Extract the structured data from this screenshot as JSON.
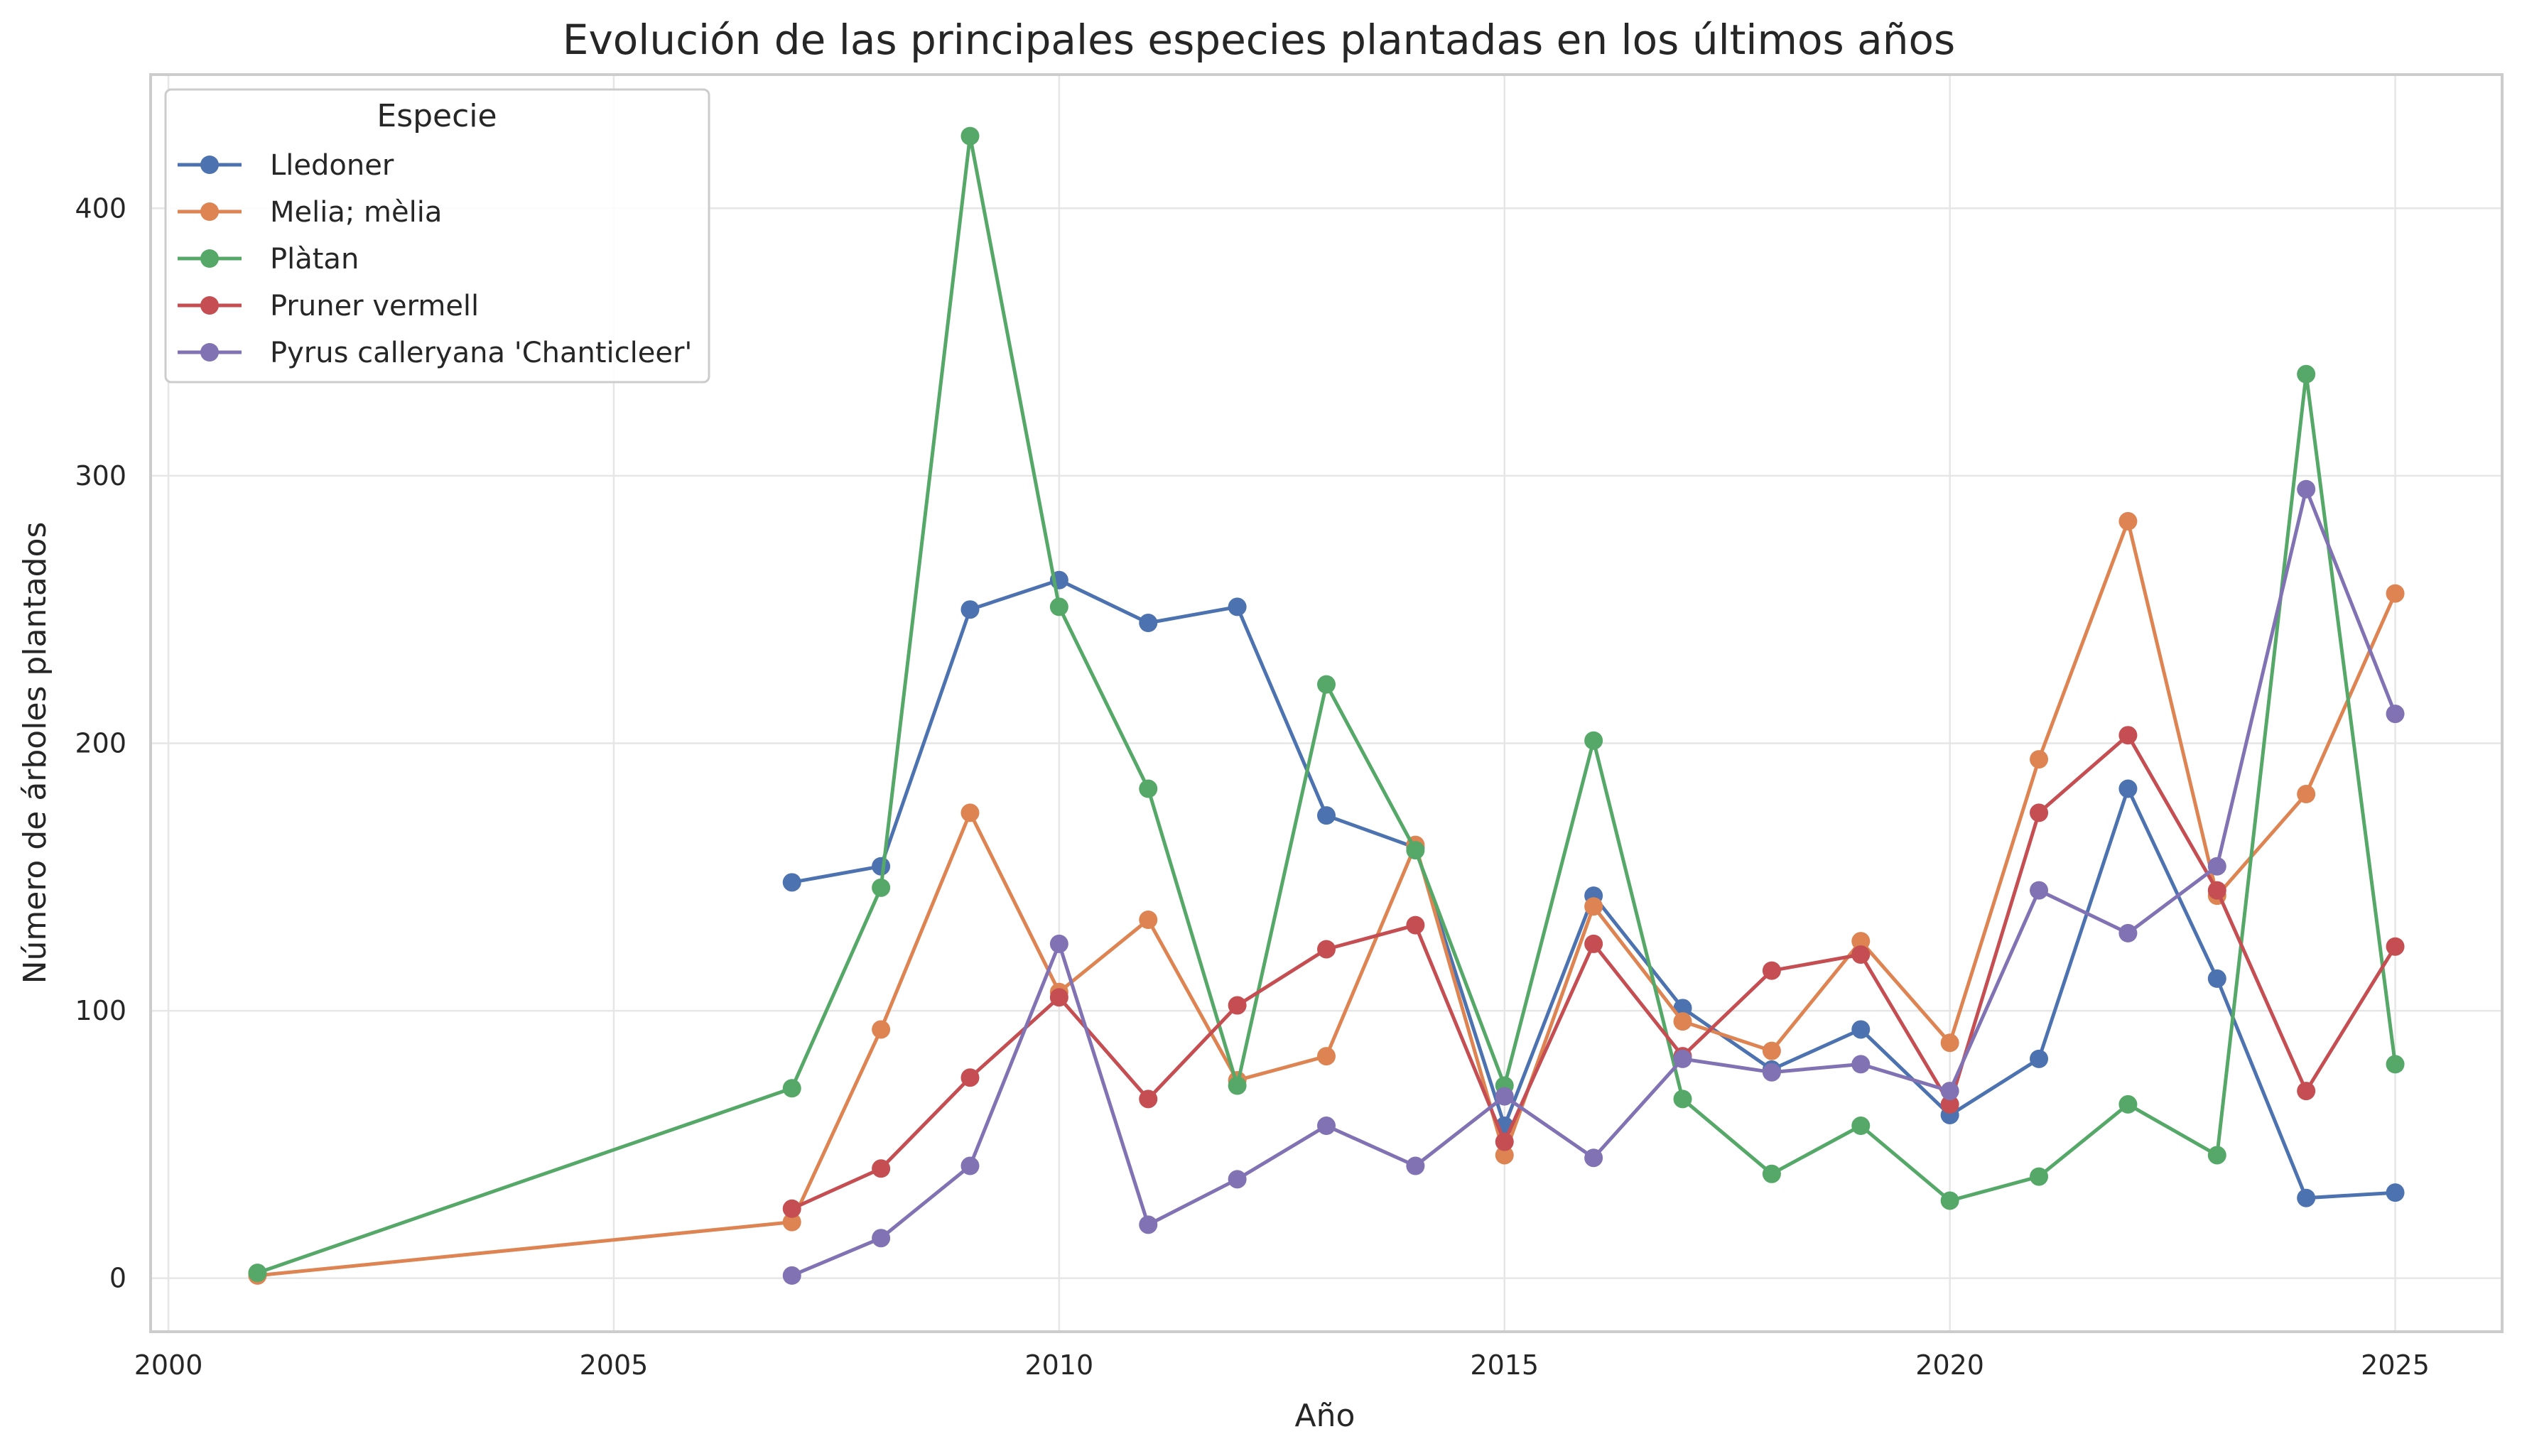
{
  "chart_data": {
    "type": "line",
    "title": "Evolución de las principales especies plantadas en los últimos años",
    "xlabel": "Año",
    "ylabel": "Número de árboles plantados",
    "xlim": [
      1999.8,
      2026.2
    ],
    "ylim": [
      -20,
      450
    ],
    "xticks": [
      2000,
      2005,
      2010,
      2015,
      2020,
      2025
    ],
    "yticks": [
      0,
      100,
      200,
      300,
      400
    ],
    "grid": true,
    "legend": {
      "title": "Especie",
      "placement": "top-left"
    },
    "series": [
      {
        "name": "Lledoner",
        "color": "#4c72b0",
        "x": [
          2007,
          2008,
          2009,
          2010,
          2011,
          2012,
          2013,
          2014,
          2015,
          2016,
          2017,
          2018,
          2019,
          2020,
          2021,
          2022,
          2023,
          2024,
          2025
        ],
        "y": [
          148,
          154,
          250,
          261,
          245,
          251,
          173,
          161,
          57,
          143,
          101,
          78,
          93,
          61,
          82,
          183,
          112,
          30,
          32
        ]
      },
      {
        "name": "Melia; mèlia",
        "color": "#dd8452",
        "x": [
          2001,
          2007,
          2008,
          2009,
          2010,
          2011,
          2012,
          2013,
          2014,
          2015,
          2016,
          2017,
          2018,
          2019,
          2020,
          2021,
          2022,
          2023,
          2024,
          2025
        ],
        "y": [
          1,
          21,
          93,
          174,
          107,
          134,
          74,
          83,
          162,
          46,
          139,
          96,
          85,
          126,
          88,
          194,
          283,
          143,
          181,
          256
        ]
      },
      {
        "name": "Plàtan",
        "color": "#55a868",
        "x": [
          2001,
          2007,
          2008,
          2009,
          2010,
          2011,
          2012,
          2013,
          2014,
          2015,
          2016,
          2017,
          2018,
          2019,
          2020,
          2021,
          2022,
          2023,
          2024,
          2025
        ],
        "y": [
          2,
          71,
          146,
          427,
          251,
          183,
          72,
          222,
          160,
          72,
          201,
          67,
          39,
          57,
          29,
          38,
          65,
          46,
          338,
          80
        ]
      },
      {
        "name": "Pruner vermell",
        "color": "#c44e52",
        "x": [
          2007,
          2008,
          2009,
          2010,
          2011,
          2012,
          2013,
          2014,
          2015,
          2016,
          2017,
          2018,
          2019,
          2020,
          2021,
          2022,
          2023,
          2024,
          2025
        ],
        "y": [
          26,
          41,
          75,
          105,
          67,
          102,
          123,
          132,
          51,
          125,
          83,
          115,
          121,
          65,
          174,
          203,
          145,
          70,
          124
        ]
      },
      {
        "name": "Pyrus calleryana 'Chanticleer'",
        "color": "#8172b3",
        "x": [
          2007,
          2008,
          2009,
          2010,
          2011,
          2012,
          2013,
          2014,
          2015,
          2016,
          2017,
          2018,
          2019,
          2020,
          2021,
          2022,
          2023,
          2024,
          2025
        ],
        "y": [
          1,
          15,
          42,
          125,
          20,
          37,
          57,
          42,
          68,
          45,
          82,
          77,
          80,
          70,
          145,
          129,
          154,
          295,
          211
        ]
      }
    ]
  }
}
